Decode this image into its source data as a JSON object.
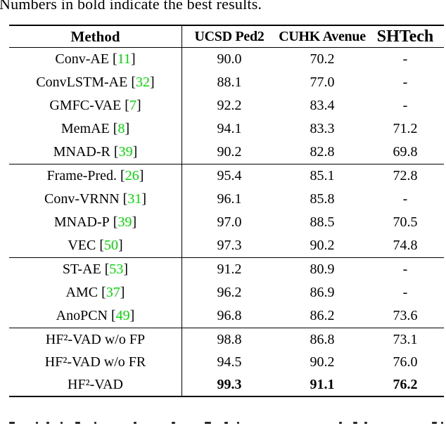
{
  "caption_top": "Numbers in bold indicate the best results.",
  "colors": {
    "citation_green": "#00dd00"
  },
  "table": {
    "method_header": "Method",
    "column_headers": [
      "UCSD Ped2",
      "CUHK Avenue",
      "SHTech"
    ],
    "missing_value": "-",
    "groups": [
      {
        "rows": [
          {
            "method": "Conv-AE",
            "ref": "11",
            "values": [
              "90.0",
              "70.2",
              "-"
            ]
          },
          {
            "method": "ConvLSTM-AE",
            "ref": "32",
            "values": [
              "88.1",
              "77.0",
              "-"
            ]
          },
          {
            "method": "GMFC-VAE",
            "ref": "7",
            "values": [
              "92.2",
              "83.4",
              "-"
            ]
          },
          {
            "method": "MemAE",
            "ref": "8",
            "values": [
              "94.1",
              "83.3",
              "71.2"
            ]
          },
          {
            "method": "MNAD-R",
            "ref": "39",
            "values": [
              "90.2",
              "82.8",
              "69.8"
            ]
          }
        ]
      },
      {
        "rows": [
          {
            "method": "Frame-Pred.",
            "ref": "26",
            "values": [
              "95.4",
              "85.1",
              "72.8"
            ]
          },
          {
            "method": "Conv-VRNN",
            "ref": "31",
            "values": [
              "96.1",
              "85.8",
              "-"
            ]
          },
          {
            "method": "MNAD-P",
            "ref": "39",
            "values": [
              "97.0",
              "88.5",
              "70.5"
            ]
          },
          {
            "method": "VEC",
            "ref": "50",
            "values": [
              "97.3",
              "90.2",
              "74.8"
            ]
          }
        ]
      },
      {
        "rows": [
          {
            "method": "ST-AE",
            "ref": "53",
            "values": [
              "91.2",
              "80.9",
              "-"
            ]
          },
          {
            "method": "AMC",
            "ref": "37",
            "values": [
              "96.2",
              "86.9",
              "-"
            ]
          },
          {
            "method": "AnoPCN",
            "ref": "49",
            "values": [
              "96.8",
              "86.2",
              "73.6"
            ]
          }
        ]
      },
      {
        "rows": [
          {
            "method": "HF²-VAD w/o FP",
            "ref": null,
            "values": [
              "98.8",
              "86.8",
              "73.1"
            ]
          },
          {
            "method": "HF²-VAD w/o FR",
            "ref": null,
            "values": [
              "94.5",
              "90.2",
              "76.0"
            ]
          },
          {
            "method": "HF²-VAD",
            "ref": null,
            "values": [
              "99.3",
              "91.1",
              "76.2"
            ],
            "bold": true
          }
        ]
      }
    ]
  }
}
